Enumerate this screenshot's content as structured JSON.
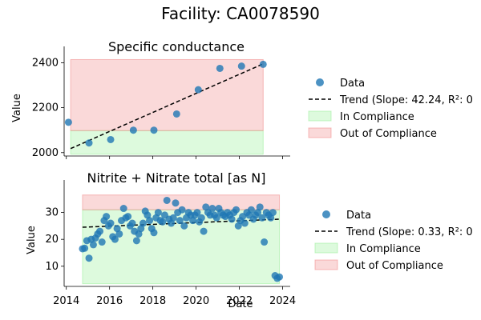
{
  "figure_title": "Facility: CA0078590",
  "shared_xlabel": "Date",
  "colors": {
    "data": "#1f77b4",
    "trend": "#000000",
    "compliance": "#90ee90",
    "out_of_compliance": "#f08080"
  },
  "chart_data": [
    {
      "type": "scatter",
      "title": "Specific conductance",
      "ylabel": "Value",
      "xlim": [
        2013.9,
        2024.35
      ],
      "ylim": [
        1985,
        2430
      ],
      "yticks": [
        2000,
        2200,
        2400
      ],
      "compliance_band": [
        1993,
        2098
      ],
      "out_band": [
        2098,
        2414
      ],
      "band_x": [
        2014.2,
        2023.1
      ],
      "points": [
        [
          2014.1,
          2135
        ],
        [
          2015.05,
          2043
        ],
        [
          2016.05,
          2058
        ],
        [
          2017.1,
          2100
        ],
        [
          2018.05,
          2100
        ],
        [
          2019.1,
          2172
        ],
        [
          2020.1,
          2280
        ],
        [
          2021.1,
          2375
        ],
        [
          2022.1,
          2385
        ],
        [
          2023.1,
          2393
        ]
      ],
      "trend": [
        [
          2014.2,
          2018
        ],
        [
          2023.1,
          2395
        ]
      ],
      "legend": {
        "data": "Data",
        "trend": "Trend (Slope: 42.24, R²: 0",
        "in": "In Compliance",
        "out": "Out of Compliance"
      }
    },
    {
      "type": "scatter",
      "title": "Nitrite + Nitrate total [as N]",
      "ylabel": "Value",
      "xlim": [
        2013.9,
        2024.35
      ],
      "ylim": [
        2.5,
        38.5
      ],
      "yticks": [
        10,
        20,
        30
      ],
      "xticks": [
        "2014",
        "2016",
        "2018",
        "2020",
        "2022",
        "2024"
      ],
      "compliance_band": [
        3.5,
        31
      ],
      "out_band": [
        31,
        36.5
      ],
      "band_x": [
        2014.75,
        2023.85
      ],
      "points": [
        [
          2014.75,
          16.5
        ],
        [
          2014.85,
          16.7
        ],
        [
          2014.95,
          19.5
        ],
        [
          2015.05,
          13
        ],
        [
          2015.15,
          20
        ],
        [
          2015.25,
          18
        ],
        [
          2015.35,
          20.5
        ],
        [
          2015.45,
          22
        ],
        [
          2015.55,
          23
        ],
        [
          2015.65,
          19
        ],
        [
          2015.75,
          27
        ],
        [
          2015.85,
          28.5
        ],
        [
          2015.95,
          25
        ],
        [
          2016.05,
          26
        ],
        [
          2016.15,
          21
        ],
        [
          2016.25,
          20
        ],
        [
          2016.35,
          24
        ],
        [
          2016.45,
          22
        ],
        [
          2016.55,
          27
        ],
        [
          2016.65,
          31.5
        ],
        [
          2016.75,
          28
        ],
        [
          2016.85,
          28.5
        ],
        [
          2016.95,
          25
        ],
        [
          2017.05,
          26
        ],
        [
          2017.15,
          23
        ],
        [
          2017.25,
          19.5
        ],
        [
          2017.35,
          22
        ],
        [
          2017.45,
          24
        ],
        [
          2017.55,
          26
        ],
        [
          2017.65,
          30.5
        ],
        [
          2017.75,
          29
        ],
        [
          2017.85,
          27
        ],
        [
          2017.95,
          24
        ],
        [
          2018.05,
          22.5
        ],
        [
          2018.15,
          28
        ],
        [
          2018.25,
          30
        ],
        [
          2018.35,
          27
        ],
        [
          2018.45,
          26.5
        ],
        [
          2018.55,
          29
        ],
        [
          2018.65,
          34.5
        ],
        [
          2018.75,
          27.5
        ],
        [
          2018.85,
          26
        ],
        [
          2018.95,
          28
        ],
        [
          2019.05,
          33.5
        ],
        [
          2019.15,
          30
        ],
        [
          2019.25,
          27
        ],
        [
          2019.35,
          31
        ],
        [
          2019.45,
          25
        ],
        [
          2019.55,
          28
        ],
        [
          2019.65,
          30
        ],
        [
          2019.75,
          29
        ],
        [
          2019.85,
          27
        ],
        [
          2019.95,
          29
        ],
        [
          2020.05,
          30
        ],
        [
          2020.15,
          26.5
        ],
        [
          2020.25,
          28
        ],
        [
          2020.35,
          23
        ],
        [
          2020.45,
          32
        ],
        [
          2020.55,
          30
        ],
        [
          2020.65,
          29
        ],
        [
          2020.75,
          31.5
        ],
        [
          2020.85,
          29
        ],
        [
          2020.95,
          28
        ],
        [
          2021.05,
          31.5
        ],
        [
          2021.15,
          30
        ],
        [
          2021.25,
          29
        ],
        [
          2021.35,
          28.5
        ],
        [
          2021.45,
          30
        ],
        [
          2021.55,
          29
        ],
        [
          2021.65,
          27.5
        ],
        [
          2021.75,
          30
        ],
        [
          2021.85,
          31
        ],
        [
          2021.95,
          25
        ],
        [
          2022.05,
          27
        ],
        [
          2022.15,
          28.5
        ],
        [
          2022.25,
          26
        ],
        [
          2022.35,
          30
        ],
        [
          2022.45,
          29
        ],
        [
          2022.55,
          31
        ],
        [
          2022.65,
          27.5
        ],
        [
          2022.75,
          29
        ],
        [
          2022.85,
          30
        ],
        [
          2022.95,
          32
        ],
        [
          2023.05,
          28
        ],
        [
          2023.15,
          19
        ],
        [
          2023.25,
          30
        ],
        [
          2023.35,
          29
        ],
        [
          2023.45,
          28
        ],
        [
          2023.55,
          30
        ],
        [
          2023.65,
          6.5
        ],
        [
          2023.75,
          5.5
        ],
        [
          2023.85,
          6
        ]
      ],
      "trend": [
        [
          2014.75,
          24.5
        ],
        [
          2023.85,
          27.5
        ]
      ],
      "legend": {
        "data": "Data",
        "trend": "Trend (Slope: 0.33, R²: 0",
        "in": "In Compliance",
        "out": "Out of Compliance"
      }
    }
  ]
}
